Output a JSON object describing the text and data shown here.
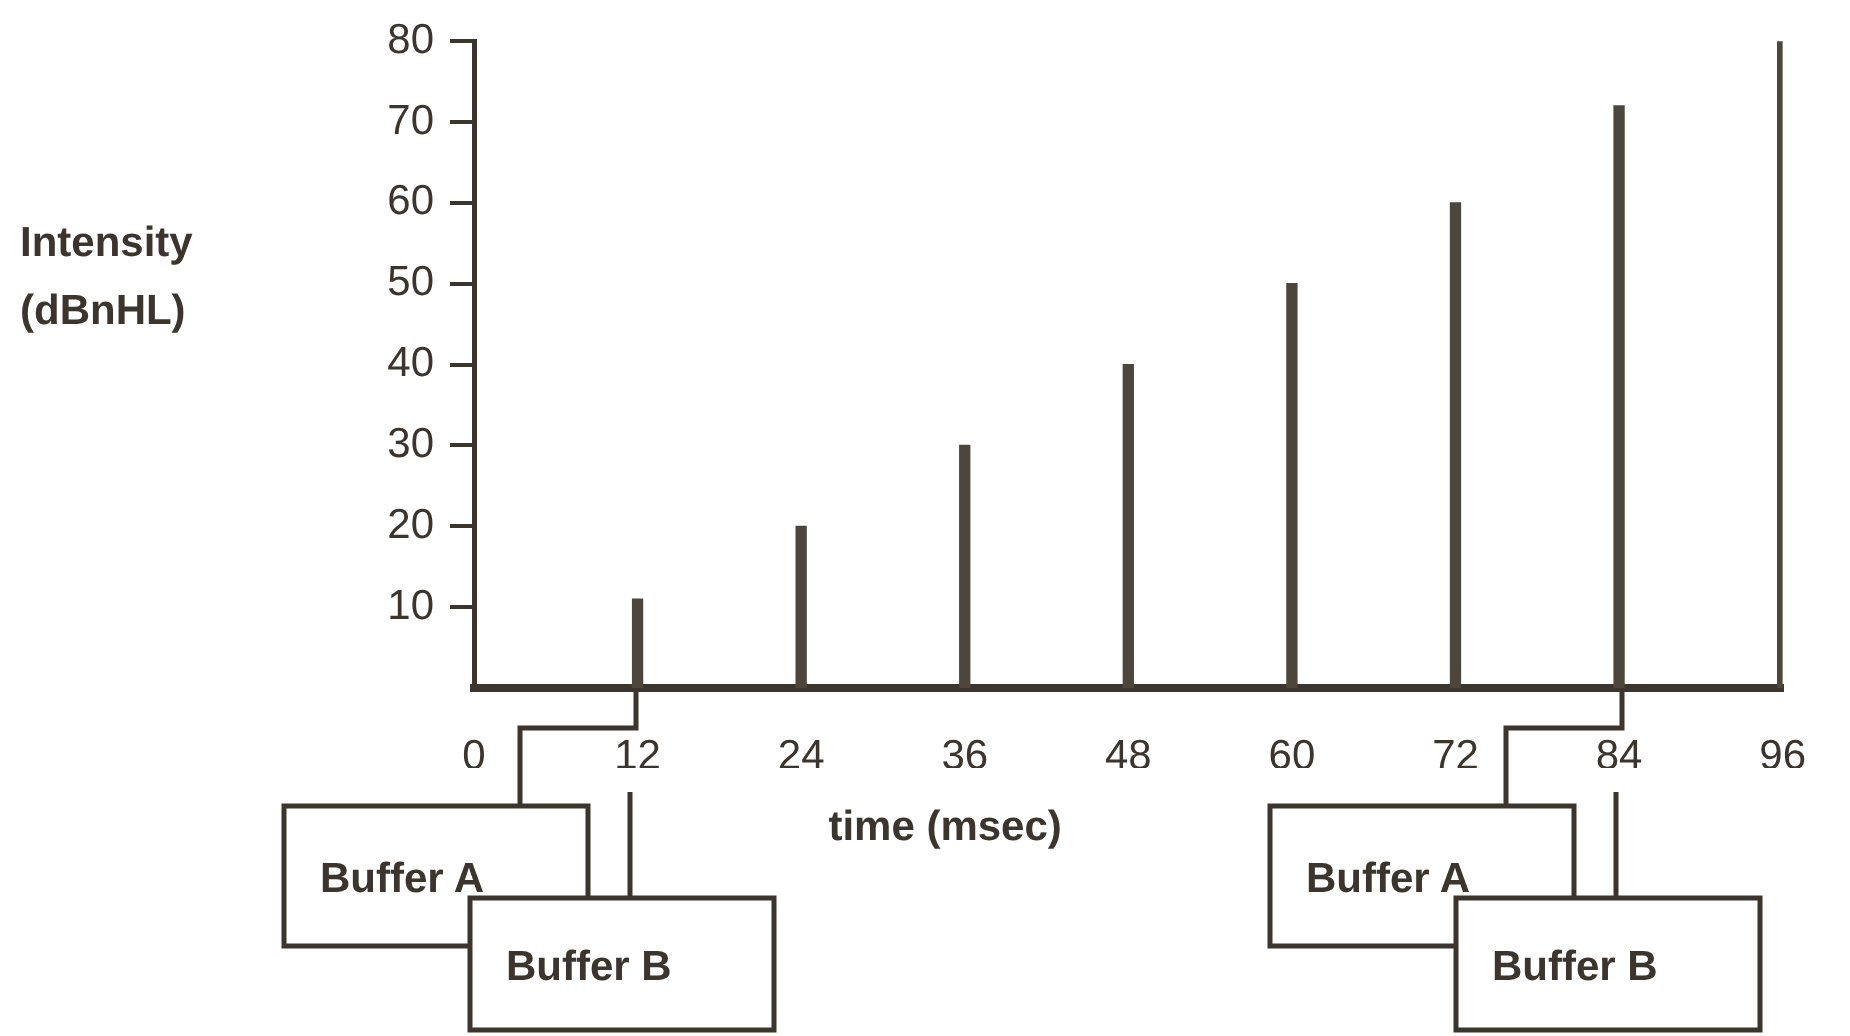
{
  "chart_data": {
    "type": "bar",
    "xlabel": "time (msec)",
    "ylabel": "Intensity (dBnHL)",
    "x": [
      12,
      24,
      36,
      48,
      60,
      72,
      84,
      96
    ],
    "values": [
      11,
      20,
      30,
      40,
      50,
      60,
      72,
      80
    ],
    "color": "#4d463c",
    "xlim": [
      0,
      96
    ],
    "xticks": [
      0,
      12,
      24,
      36,
      48,
      60,
      72,
      84,
      96
    ],
    "ylim": [
      0,
      80
    ],
    "yticks": [
      10,
      20,
      30,
      40,
      50,
      60,
      70,
      80
    ],
    "grid": false,
    "legend": false,
    "annotations": [
      "Buffer A",
      "Buffer B",
      "Buffer A",
      "Buffer B"
    ]
  }
}
